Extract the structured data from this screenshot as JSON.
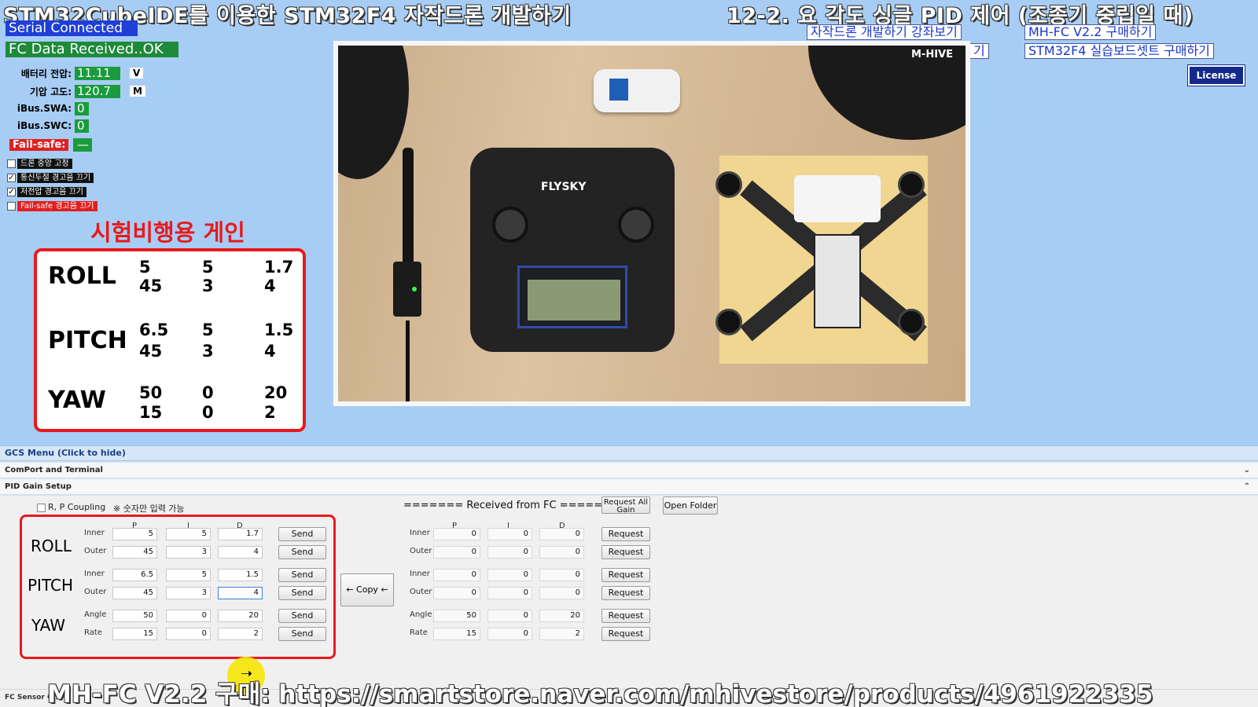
{
  "header": {
    "title_left": "STM32CubeIDE를 이용한 STM32F4 자작드론 개발하기",
    "title_right": "12-2. 요 각도 싱글 PID 제어 (조종기 중립일 때)"
  },
  "status": {
    "serial": "Serial Connected",
    "fc_data": "FC Data Received..OK"
  },
  "telemetry": {
    "battery_label": "배터리 전압:",
    "battery_value": "11.11",
    "battery_unit": "V",
    "altitude_label": "기압 고도:",
    "altitude_value": "120.7",
    "altitude_unit": "M",
    "swa_label": "iBus.SWA:",
    "swa_value": "0",
    "swc_label": "iBus.SWC:",
    "swc_value": "0",
    "failsafe_label": "Fail-safe:",
    "failsafe_value": "—"
  },
  "options": [
    {
      "label": "드론 중앙 고정",
      "checked": false,
      "color": "black"
    },
    {
      "label": "통신두절 경고음 끄기",
      "checked": true,
      "color": "black"
    },
    {
      "label": "저전압 경고음 끄기",
      "checked": true,
      "color": "black"
    },
    {
      "label": "Fail-safe 경고음 끄기",
      "checked": false,
      "color": "red"
    }
  ],
  "test_gain": {
    "title": "시험비행용 게인",
    "axes": [
      {
        "name": "ROLL",
        "rows": [
          [
            "5",
            "5",
            "1.7"
          ],
          [
            "45",
            "3",
            "4"
          ]
        ]
      },
      {
        "name": "PITCH",
        "rows": [
          [
            "6.5",
            "5",
            "1.5"
          ],
          [
            "45",
            "3",
            "4"
          ]
        ]
      },
      {
        "name": "YAW",
        "rows": [
          [
            "50",
            "0",
            "20"
          ],
          [
            "15",
            "0",
            "2"
          ]
        ]
      }
    ]
  },
  "links": {
    "lecture": "자작드론 개발하기 강좌보기",
    "lecture2": "기",
    "buy_fc": "MH-FC V2.2 구매하기",
    "buy_board": "STM32F4 실습보드셋트 구매하기",
    "license": "License"
  },
  "camera": {
    "watermark": "M-HIVE",
    "radio_brand": "FLYSKY"
  },
  "gcs": {
    "menu_bar": "GCS Menu (Click to hide)",
    "comport_section": "ComPort and Terminal",
    "pid_section": "PID Gain Setup",
    "bottom_section": "FC Sensor Gi...",
    "rp_coupling": "R, P Coupling",
    "numbers_only": "※ 숫자만 입력 가능",
    "received_title": "======= Received from FC =======",
    "request_all": "Request All Gain",
    "open_folder": "Open Folder",
    "copy_label": "← Copy ←",
    "send_label": "Send",
    "request_label": "Request",
    "col_p": "P",
    "col_i": "I",
    "col_d": "D"
  },
  "pid_setup": [
    {
      "axis": "ROLL",
      "rows": [
        {
          "label": "Inner",
          "p": "5",
          "i": "5",
          "d": "1.7"
        },
        {
          "label": "Outer",
          "p": "45",
          "i": "3",
          "d": "4"
        }
      ]
    },
    {
      "axis": "PITCH",
      "rows": [
        {
          "label": "Inner",
          "p": "6.5",
          "i": "5",
          "d": "1.5"
        },
        {
          "label": "Outer",
          "p": "45",
          "i": "3",
          "d": "4"
        }
      ]
    },
    {
      "axis": "YAW",
      "rows": [
        {
          "label": "Angle",
          "p": "50",
          "i": "0",
          "d": "20"
        },
        {
          "label": "Rate",
          "p": "15",
          "i": "0",
          "d": "2"
        }
      ]
    }
  ],
  "received": [
    {
      "label": "Inner",
      "p": "0",
      "i": "0",
      "d": "0"
    },
    {
      "label": "Outer",
      "p": "0",
      "i": "0",
      "d": "0"
    },
    {
      "label": "Inner",
      "p": "0",
      "i": "0",
      "d": "0"
    },
    {
      "label": "Outer",
      "p": "0",
      "i": "0",
      "d": "0"
    },
    {
      "label": "Angle",
      "p": "50",
      "i": "0",
      "d": "20"
    },
    {
      "label": "Rate",
      "p": "15",
      "i": "0",
      "d": "2"
    }
  ],
  "footer": {
    "store_url_text": "MH-FC V2.2 구매: https://smartstore.naver.com/mhivestore/products/4961922335"
  }
}
